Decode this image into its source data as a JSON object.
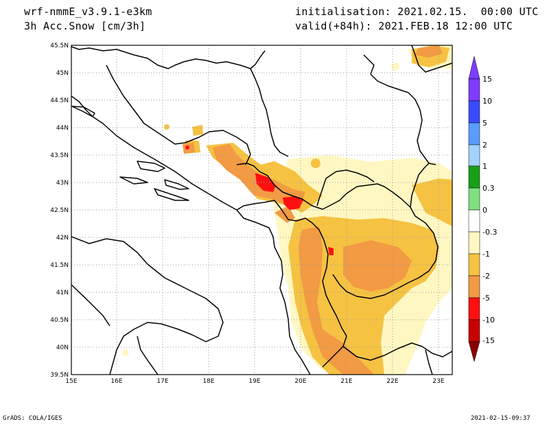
{
  "header": {
    "model": "wrf-nmmE_v3.9.1-e3km",
    "field": "3h Acc.Snow [cm/3h]",
    "init": "initialisation: 2021.02.15.  00:00 UTC",
    "valid": "valid(+84h): 2021.FEB.18 12:00 UTC"
  },
  "axes": {
    "lat_labels": [
      "45.5N",
      "45N",
      "44.5N",
      "44N",
      "43.5N",
      "43N",
      "42.5N",
      "42N",
      "41.5N",
      "41N",
      "40.5N",
      "40N",
      "39.5N"
    ],
    "lon_labels": [
      "15E",
      "16E",
      "17E",
      "18E",
      "19E",
      "20E",
      "21E",
      "22E",
      "23E"
    ]
  },
  "colorbar": {
    "labels": [
      "15",
      "10",
      "5",
      "2",
      "1",
      "0.3",
      "0",
      "-0.3",
      "-1",
      "-2",
      "-5",
      "-10",
      "-15"
    ],
    "colors": [
      "#7f3cff",
      "#3c4bff",
      "#5a9cff",
      "#a3d2ff",
      "#18a018",
      "#7fe07f",
      "#ffffff",
      "#fff7c2",
      "#f5c242",
      "#f29a44",
      "#ff1010",
      "#c80000",
      "#8b0000"
    ]
  },
  "footer": {
    "left": "GrADS: COLA/IGES",
    "right": "2021-02-15-09:37"
  }
}
